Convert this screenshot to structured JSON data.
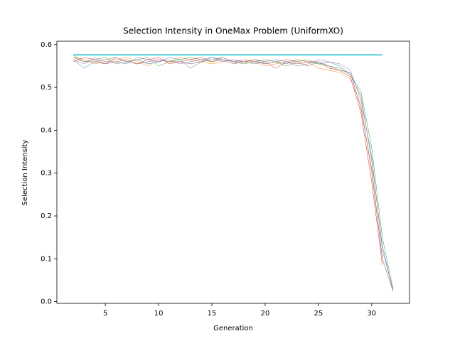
{
  "chart_data": {
    "type": "line",
    "title": "Selection Intensity in OneMax Problem (UniformXO)",
    "x_label": "Generation",
    "y_label": "Selection Intensity",
    "x": [
      2,
      3,
      4,
      5,
      6,
      7,
      8,
      9,
      10,
      11,
      12,
      13,
      14,
      15,
      16,
      17,
      18,
      19,
      20,
      21,
      22,
      23,
      24,
      25,
      26,
      27,
      28,
      29,
      30,
      31,
      32
    ],
    "xlim": [
      0.45,
      33.55
    ],
    "ylim": [
      -0.004,
      0.608
    ],
    "xticks": [
      5,
      10,
      15,
      20,
      25,
      30
    ],
    "yticks": [
      {
        "value": 0,
        "label": "0.0"
      },
      0.1,
      0.2,
      0.3,
      0.4,
      0.5,
      0.6
    ],
    "series": [
      {
        "color": "#1f77b4",
        "values": [
          0.565,
          0.545,
          0.56,
          0.555,
          0.57,
          0.56,
          0.565,
          0.555,
          0.56,
          0.57,
          0.565,
          0.545,
          0.56,
          0.57,
          0.565,
          0.56,
          0.56,
          0.565,
          0.555,
          0.56,
          0.555,
          0.565,
          0.56,
          0.555,
          0.56,
          0.55,
          0.53,
          0.48,
          0.33,
          0.13,
          0.025
        ]
      },
      {
        "color": "#ff7f0e",
        "values": [
          0.57,
          0.565,
          0.555,
          0.56,
          0.565,
          0.57,
          0.56,
          0.55,
          0.565,
          0.56,
          0.57,
          0.565,
          0.56,
          0.555,
          0.56,
          0.565,
          0.56,
          0.56,
          0.55,
          0.555,
          0.56,
          0.565,
          0.56,
          0.545,
          0.54,
          0.535,
          0.52,
          0.46,
          0.3,
          0.1,
          null
        ]
      },
      {
        "color": "#2ca02c",
        "values": [
          0.575,
          0.56,
          0.565,
          0.57,
          0.555,
          0.56,
          0.565,
          0.57,
          0.55,
          0.56,
          0.565,
          0.57,
          0.565,
          0.56,
          0.57,
          0.56,
          0.555,
          0.56,
          0.565,
          0.56,
          0.55,
          0.56,
          0.565,
          0.555,
          0.55,
          0.545,
          0.53,
          0.49,
          0.36,
          0.15,
          0.03
        ]
      },
      {
        "color": "#d62728",
        "values": [
          0.56,
          0.57,
          0.565,
          0.555,
          0.56,
          0.565,
          0.555,
          0.565,
          0.57,
          0.555,
          0.56,
          0.565,
          0.57,
          0.56,
          0.565,
          0.555,
          0.56,
          0.565,
          0.56,
          0.545,
          0.56,
          0.555,
          0.56,
          0.56,
          0.545,
          0.54,
          0.525,
          0.44,
          0.28,
          0.085,
          null
        ]
      },
      {
        "color": "#9467bd",
        "values": [
          0.565,
          0.555,
          0.57,
          0.56,
          0.56,
          0.555,
          0.57,
          0.565,
          0.56,
          0.565,
          0.555,
          0.56,
          0.565,
          0.57,
          0.56,
          0.565,
          0.56,
          0.555,
          0.56,
          0.565,
          0.56,
          0.55,
          0.555,
          0.565,
          0.56,
          0.555,
          0.54,
          0.47,
          0.34,
          0.12,
          0.028
        ]
      },
      {
        "color": "#8c564b",
        "values": [
          0.57,
          0.56,
          0.56,
          0.565,
          0.57,
          0.56,
          0.555,
          0.56,
          0.565,
          0.56,
          0.56,
          0.555,
          0.56,
          0.565,
          0.57,
          0.56,
          0.565,
          0.56,
          0.555,
          0.56,
          0.565,
          0.56,
          0.55,
          0.56,
          0.55,
          0.54,
          0.535,
          0.45,
          0.31,
          0.1,
          0.025
        ]
      },
      {
        "color": "#17becf",
        "width": 1.5,
        "values": [
          0.576,
          0.576,
          0.576,
          0.576,
          0.576,
          0.576,
          0.576,
          0.576,
          0.576,
          0.576,
          0.576,
          0.576,
          0.576,
          0.576,
          0.576,
          0.576,
          0.576,
          0.576,
          0.576,
          0.576,
          0.576,
          0.576,
          0.576,
          0.576,
          0.576,
          0.576,
          0.576,
          0.576,
          0.576,
          0.576,
          null
        ]
      }
    ]
  }
}
